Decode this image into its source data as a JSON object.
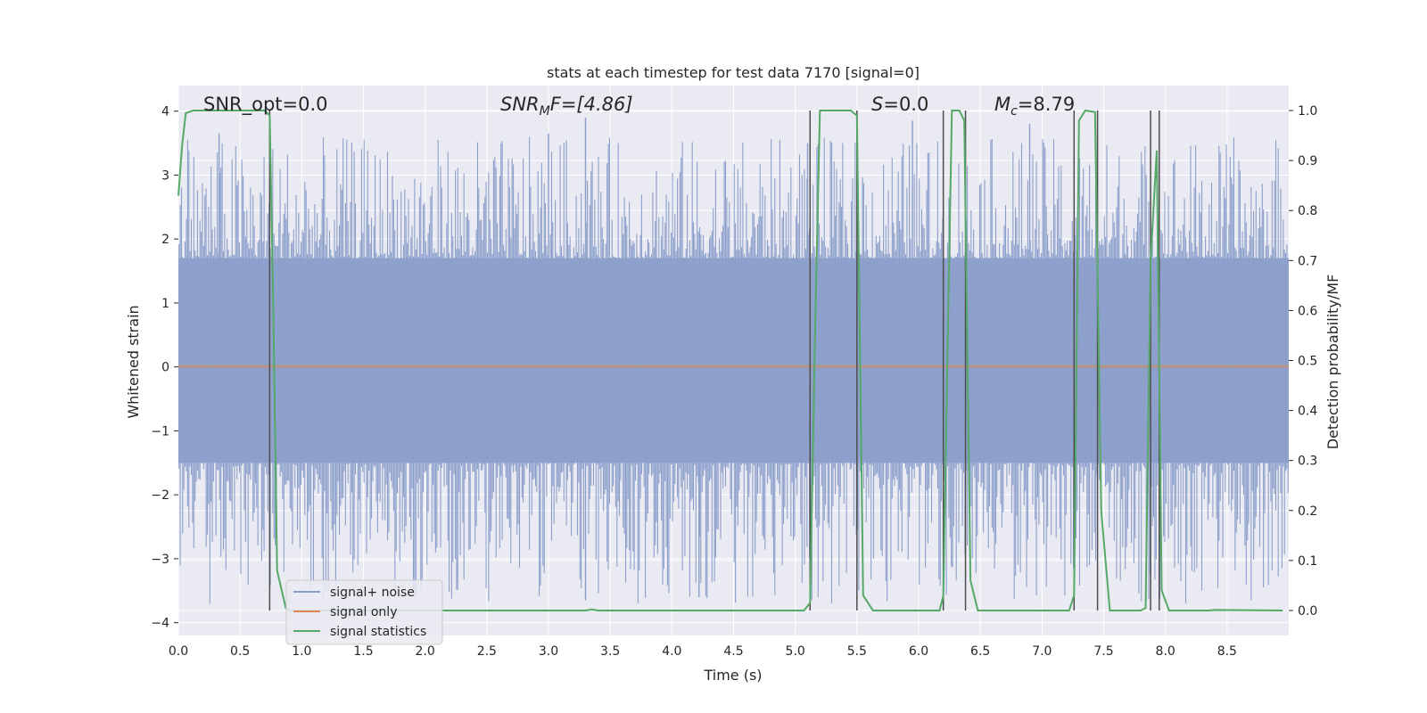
{
  "chart_data": {
    "type": "line",
    "title": "stats at each timestep for test data 7170 [signal=0]",
    "xlabel": "Time (s)",
    "ylabel": "Whitened strain",
    "y2label": "Detection probability/MF",
    "xlim": [
      0.0,
      9.0
    ],
    "ylim": [
      -4.2,
      4.4
    ],
    "y2lim": [
      -0.05,
      1.05
    ],
    "grid": true,
    "legend_position": "lower-left",
    "x_ticks": [
      "0.0",
      "0.5",
      "1.0",
      "1.5",
      "2.0",
      "2.5",
      "3.0",
      "3.5",
      "4.0",
      "4.5",
      "5.0",
      "5.5",
      "6.0",
      "6.5",
      "7.0",
      "7.5",
      "8.0",
      "8.5"
    ],
    "y_ticks": [
      "−4",
      "−3",
      "−2",
      "−1",
      "0",
      "1",
      "2",
      "3",
      "4"
    ],
    "y2_ticks": [
      "0.0",
      "0.1",
      "0.2",
      "0.3",
      "0.4",
      "0.5",
      "0.6",
      "0.7",
      "0.8",
      "0.9",
      "1.0"
    ],
    "annotations": {
      "snr_opt": "SNR_opt=0.0",
      "snr_mf_sym": "SNR",
      "snr_mf_sub": "M",
      "snr_mf_rest": "F=[4.86]",
      "s_sym": "S",
      "s_rest": "=0.0",
      "mc_sym": "M",
      "mc_sub": "c",
      "mc_rest": "=8.79"
    },
    "colors": {
      "noise": "#8c9fcb",
      "signal": "#dd8452",
      "stats": "#55a868",
      "vlines": "#4d4d4d",
      "background": "#eaeaf2",
      "grid": "#ffffff"
    },
    "series": [
      {
        "name": "signal+ noise",
        "kind": "noise",
        "envelope_upper": 1.7,
        "envelope_lower": -1.5,
        "peak_range": [
          -4.0,
          3.9
        ],
        "notable_peaks": [
          [
            0.33,
            3.65
          ],
          [
            3.0,
            3.65
          ],
          [
            3.3,
            3.9
          ],
          [
            3.3,
            -3.65
          ],
          [
            4.22,
            -3.6
          ],
          [
            5.1,
            3.5
          ],
          [
            5.95,
            3.85
          ],
          [
            6.9,
            3.8
          ],
          [
            7.95,
            3.95
          ]
        ]
      },
      {
        "name": "signal only",
        "kind": "flat",
        "value": 0.0
      },
      {
        "name": "signal statistics",
        "kind": "stats",
        "points": [
          [
            0.0,
            0.83
          ],
          [
            0.03,
            0.93
          ],
          [
            0.06,
            0.995
          ],
          [
            0.12,
            1.0
          ],
          [
            0.7,
            1.0
          ],
          [
            0.74,
            0.99
          ],
          [
            0.77,
            0.6
          ],
          [
            0.8,
            0.08
          ],
          [
            0.87,
            0.005
          ],
          [
            0.9,
            0.0
          ],
          [
            3.3,
            0.0
          ],
          [
            3.35,
            0.002
          ],
          [
            3.4,
            0.0
          ],
          [
            5.07,
            0.0
          ],
          [
            5.12,
            0.015
          ],
          [
            5.16,
            0.55
          ],
          [
            5.2,
            1.0
          ],
          [
            5.45,
            1.0
          ],
          [
            5.5,
            0.99
          ],
          [
            5.55,
            0.03
          ],
          [
            5.63,
            0.0
          ],
          [
            6.17,
            0.0
          ],
          [
            6.2,
            0.03
          ],
          [
            6.24,
            0.6
          ],
          [
            6.27,
            1.0
          ],
          [
            6.33,
            1.0
          ],
          [
            6.37,
            0.98
          ],
          [
            6.42,
            0.06
          ],
          [
            6.48,
            0.0
          ],
          [
            7.22,
            0.0
          ],
          [
            7.26,
            0.03
          ],
          [
            7.3,
            0.98
          ],
          [
            7.35,
            1.0
          ],
          [
            7.43,
            0.997
          ],
          [
            7.48,
            0.2
          ],
          [
            7.55,
            0.0
          ],
          [
            7.8,
            0.0
          ],
          [
            7.84,
            0.005
          ],
          [
            7.88,
            0.7
          ],
          [
            7.93,
            0.92
          ],
          [
            7.97,
            0.04
          ],
          [
            8.03,
            0.0
          ],
          [
            8.35,
            0.0
          ],
          [
            8.4,
            0.001
          ],
          [
            8.95,
            0.0
          ]
        ]
      }
    ],
    "vertical_markers": [
      0.74,
      5.12,
      5.5,
      6.2,
      6.38,
      7.26,
      7.45,
      7.88,
      7.95
    ]
  }
}
